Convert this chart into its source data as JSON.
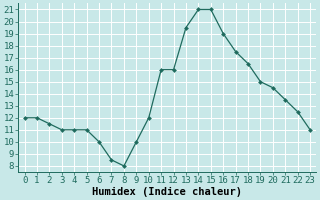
{
  "x": [
    0,
    1,
    2,
    3,
    4,
    5,
    6,
    7,
    8,
    9,
    10,
    11,
    12,
    13,
    14,
    15,
    16,
    17,
    18,
    19,
    20,
    21,
    22,
    23
  ],
  "y": [
    12,
    12,
    11.5,
    11,
    11,
    11,
    10,
    8.5,
    8,
    10,
    12,
    16,
    16,
    19.5,
    21,
    21,
    19,
    17.5,
    16.5,
    15,
    14.5,
    13.5,
    12.5,
    11
  ],
  "line_color": "#1f6b5e",
  "marker": "D",
  "marker_size": 2.0,
  "bg_color": "#c8e8e8",
  "grid_color": "#b0d4d4",
  "xlabel": "Humidex (Indice chaleur)",
  "tick_fontsize": 6.5,
  "xlabel_fontsize": 7.5,
  "xlim": [
    -0.5,
    23.5
  ],
  "ylim": [
    7.5,
    21.5
  ],
  "yticks": [
    8,
    9,
    10,
    11,
    12,
    13,
    14,
    15,
    16,
    17,
    18,
    19,
    20,
    21
  ],
  "xticks": [
    0,
    1,
    2,
    3,
    4,
    5,
    6,
    7,
    8,
    9,
    10,
    11,
    12,
    13,
    14,
    15,
    16,
    17,
    18,
    19,
    20,
    21,
    22,
    23
  ],
  "xtick_labels": [
    "0",
    "1",
    "2",
    "3",
    "4",
    "5",
    "6",
    "7",
    "8",
    "9",
    "10",
    "11",
    "12",
    "13",
    "14",
    "15",
    "16",
    "17",
    "18",
    "19",
    "20",
    "21",
    "22",
    "23"
  ]
}
